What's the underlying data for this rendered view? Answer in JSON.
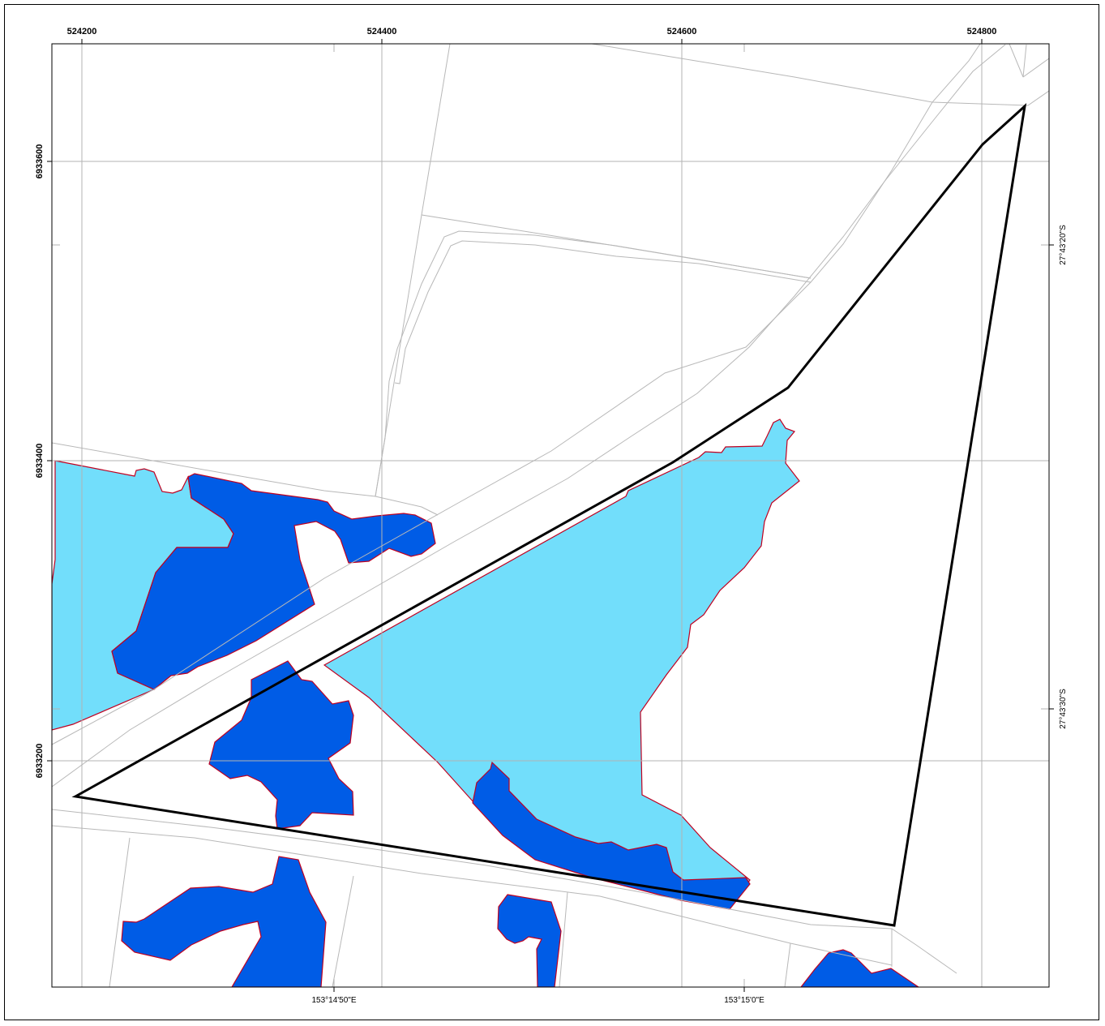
{
  "map": {
    "top_easting_labels": [
      "524200",
      "524400",
      "524600",
      "524800"
    ],
    "left_northing_labels": [
      "6933600",
      "6933400",
      "6933200"
    ],
    "right_latitude_labels": [
      "27°43'20\"S",
      "27°43'30\"S"
    ],
    "bottom_longitude_labels": [
      "153°14'50\"E",
      "153°15'0\"E"
    ]
  },
  "style": {
    "light_water_fill": "#72DEFB",
    "dark_water_fill": "#005CE6",
    "polygon_outline": "#C00020",
    "boundary_line": "#000000",
    "grid_line": "#B3B3B3",
    "road_line": "#B8B8B8"
  }
}
